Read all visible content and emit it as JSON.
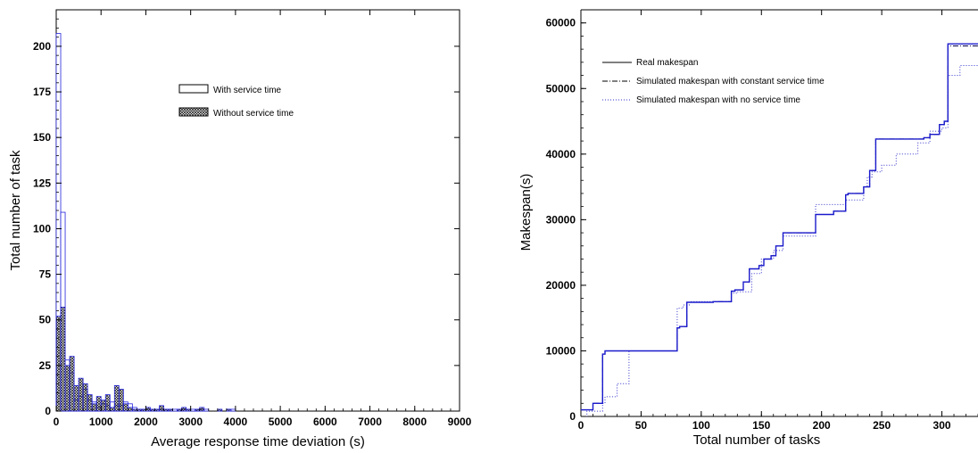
{
  "chart_data": [
    {
      "type": "bar",
      "xlabel": "Average response time deviation (s)",
      "ylabel": "Total number of task",
      "xlim": [
        0,
        9000
      ],
      "ylim": [
        0,
        220
      ],
      "xticks": [
        "0",
        "1000",
        "2000",
        "3000",
        "4000",
        "5000",
        "6000",
        "7000",
        "8000",
        "9000"
      ],
      "yticks": [
        "0",
        "25",
        "50",
        "75",
        "100",
        "125",
        "150",
        "175",
        "200"
      ],
      "bin_width": 100,
      "legend_position": "upper-center",
      "series": [
        {
          "name": "With service time",
          "style": "outline",
          "values": [
            207,
            109,
            28,
            21,
            6,
            8,
            12,
            6,
            5,
            2,
            4,
            3,
            5,
            3,
            3,
            5,
            4,
            2,
            1,
            1,
            1,
            1,
            1,
            1,
            1,
            1,
            1,
            1,
            1,
            1,
            1,
            1,
            1,
            1,
            0,
            0,
            0,
            0,
            1,
            1
          ]
        },
        {
          "name": "Without service time",
          "style": "crosshatch",
          "values": [
            52,
            57,
            25,
            30,
            14,
            18,
            15,
            9,
            4,
            8,
            6,
            9,
            2,
            14,
            12,
            4,
            2,
            1,
            1,
            1,
            2,
            1,
            1,
            3,
            1,
            1,
            0,
            1,
            2,
            1,
            0,
            1,
            2,
            0,
            0,
            0,
            1,
            0,
            1,
            0
          ]
        }
      ]
    },
    {
      "type": "line",
      "xlabel": "Total number of tasks",
      "ylabel": "Makespan(s)",
      "xlim": [
        0,
        330
      ],
      "ylim": [
        0,
        62000
      ],
      "xticks": [
        "0",
        "50",
        "100",
        "150",
        "200",
        "250",
        "300"
      ],
      "yticks": [
        "0",
        "10000",
        "20000",
        "30000",
        "40000",
        "50000",
        "60000"
      ],
      "legend_position": "upper-left",
      "series": [
        {
          "name": "Real makespan",
          "style": "solid",
          "x": [
            0,
            10,
            10,
            18,
            18,
            20,
            20,
            80,
            80,
            82,
            82,
            88,
            88,
            110,
            110,
            125,
            125,
            128,
            128,
            135,
            135,
            140,
            140,
            148,
            148,
            152,
            152,
            158,
            158,
            162,
            162,
            168,
            168,
            195,
            195,
            210,
            210,
            220,
            220,
            222,
            222,
            235,
            235,
            240,
            240,
            245,
            245,
            285,
            285,
            290,
            290,
            298,
            298,
            302,
            302,
            305,
            305,
            330
          ],
          "y": [
            1000,
            1000,
            2000,
            2000,
            9500,
            9500,
            10000,
            10000,
            13500,
            13500,
            13700,
            13700,
            17400,
            17400,
            17500,
            17500,
            19100,
            19100,
            19300,
            19300,
            20500,
            20500,
            22500,
            22500,
            23000,
            23000,
            24000,
            24000,
            24500,
            24500,
            26000,
            26000,
            28000,
            28000,
            30800,
            30800,
            31300,
            31300,
            33800,
            33800,
            34000,
            34000,
            35000,
            35000,
            37500,
            37500,
            42300,
            42300,
            42500,
            42500,
            43000,
            43000,
            44500,
            44500,
            45000,
            45000,
            56800,
            56800
          ]
        },
        {
          "name": "Simulated makespan with constant service time",
          "style": "dashdot",
          "x": [
            0,
            10,
            10,
            18,
            18,
            20,
            20,
            80,
            80,
            82,
            82,
            88,
            88,
            110,
            110,
            125,
            125,
            128,
            128,
            135,
            135,
            140,
            140,
            148,
            148,
            152,
            152,
            158,
            158,
            162,
            162,
            168,
            168,
            195,
            195,
            210,
            210,
            220,
            220,
            222,
            222,
            235,
            235,
            240,
            240,
            245,
            245,
            285,
            285,
            290,
            290,
            298,
            298,
            302,
            302,
            305,
            305,
            330
          ],
          "y": [
            1000,
            1000,
            2000,
            2000,
            9500,
            9500,
            10000,
            10000,
            13500,
            13500,
            13700,
            13700,
            17400,
            17400,
            17500,
            17500,
            19100,
            19100,
            19300,
            19300,
            20500,
            20500,
            22500,
            22500,
            23000,
            23000,
            24000,
            24000,
            24500,
            24500,
            26000,
            26000,
            28000,
            28000,
            30800,
            30800,
            31300,
            31300,
            33800,
            33800,
            34000,
            34000,
            35000,
            35000,
            37500,
            37500,
            42300,
            42300,
            42500,
            42500,
            43000,
            43000,
            44500,
            44500,
            45000,
            45000,
            56500,
            56500
          ]
        },
        {
          "name": "Simulated makespan with no service time",
          "style": "dotted",
          "x": [
            0,
            5,
            5,
            18,
            18,
            20,
            20,
            30,
            30,
            40,
            40,
            80,
            80,
            85,
            85,
            90,
            90,
            125,
            125,
            130,
            130,
            142,
            142,
            150,
            150,
            160,
            160,
            168,
            168,
            195,
            195,
            220,
            220,
            235,
            235,
            238,
            238,
            242,
            242,
            250,
            250,
            262,
            262,
            280,
            280,
            290,
            290,
            300,
            300,
            305,
            305,
            315,
            315,
            330
          ],
          "y": [
            0,
            0,
            800,
            800,
            2000,
            2000,
            3000,
            3000,
            5000,
            5000,
            10000,
            10000,
            16500,
            16500,
            17000,
            17000,
            17500,
            17500,
            18800,
            18800,
            19000,
            19000,
            21800,
            21800,
            24000,
            24000,
            25300,
            25300,
            27500,
            27500,
            32300,
            32300,
            33000,
            33000,
            35000,
            35000,
            36500,
            36500,
            37300,
            37300,
            38300,
            38300,
            40000,
            40000,
            41700,
            41700,
            43500,
            43500,
            44000,
            44000,
            52000,
            52000,
            53500,
            53500
          ]
        }
      ]
    }
  ]
}
